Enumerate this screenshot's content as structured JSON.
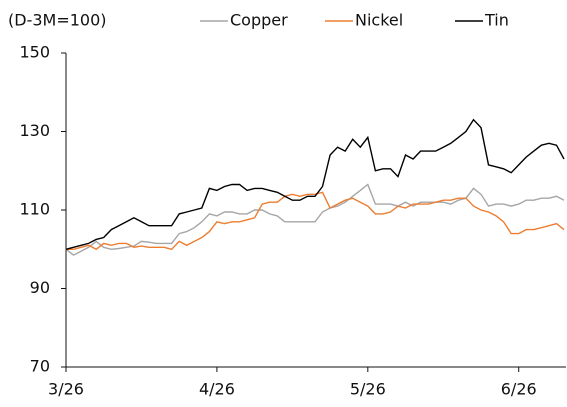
{
  "chart_data": {
    "type": "line",
    "y_label": "(D-3M=100)",
    "categories": [
      "3/26",
      null,
      null,
      null,
      null,
      null,
      null,
      null,
      null,
      null,
      null,
      null,
      null,
      null,
      null,
      null,
      null,
      null,
      null,
      null,
      "4/26",
      null,
      null,
      null,
      null,
      null,
      null,
      null,
      null,
      null,
      null,
      null,
      null,
      null,
      null,
      null,
      null,
      null,
      null,
      null,
      "5/26",
      null,
      null,
      null,
      null,
      null,
      null,
      null,
      null,
      null,
      null,
      null,
      null,
      null,
      null,
      null,
      null,
      null,
      null,
      null,
      "6/26",
      null,
      null,
      null,
      null,
      null,
      null
    ],
    "series": [
      {
        "name": "Copper",
        "color": "#a6a6a6",
        "values": [
          100,
          98.5,
          99.5,
          100.5,
          102,
          100.5,
          100,
          100.2,
          100.5,
          100.8,
          102,
          101.8,
          101.5,
          101.5,
          101.5,
          104,
          104.5,
          105.5,
          107,
          109,
          108.5,
          109.5,
          109.5,
          109,
          109,
          110,
          110,
          109,
          108.5,
          107,
          107,
          107,
          107,
          107,
          109.5,
          110.5,
          111,
          112,
          113.5,
          115,
          116.5,
          111.5,
          111.5,
          111.5,
          111,
          112,
          111,
          112,
          112,
          112,
          112,
          111.5,
          112.5,
          113,
          115.5,
          114,
          111,
          111.5,
          111.5,
          111,
          111.5,
          112.5,
          112.5,
          113,
          113,
          113.5,
          112.5
        ]
      },
      {
        "name": "Nickel",
        "color": "#ed7d31",
        "values": [
          100,
          100,
          100.5,
          101,
          100,
          101.5,
          101,
          101.5,
          101.5,
          100.5,
          100.8,
          100.5,
          100.5,
          100.5,
          100,
          102,
          101,
          102,
          103,
          104.5,
          107,
          106.5,
          107,
          107,
          107.5,
          108,
          111.5,
          112,
          112,
          113.5,
          114,
          113.5,
          114,
          114,
          114.5,
          110.5,
          111.5,
          112.5,
          113,
          112,
          111,
          109,
          109,
          109.5,
          111,
          110.5,
          111.5,
          111.5,
          111.5,
          112,
          112.5,
          112.5,
          113,
          113,
          111,
          110,
          109.5,
          108.5,
          107,
          104,
          104,
          105,
          105,
          105.5,
          106,
          106.5,
          105
        ]
      },
      {
        "name": "Tin",
        "color": "#000000",
        "values": [
          100,
          100.5,
          101,
          101.5,
          102.5,
          103,
          105,
          106,
          107,
          108,
          107,
          106,
          106,
          106,
          106,
          109,
          109.5,
          110,
          110.5,
          115.5,
          115,
          116,
          116.5,
          116.5,
          115,
          115.5,
          115.5,
          115,
          114.5,
          113.5,
          112.5,
          112.5,
          113.5,
          113.5,
          116,
          124,
          126,
          125,
          128,
          126,
          128.5,
          120,
          120.5,
          120.5,
          118.5,
          124,
          123,
          125,
          125,
          125,
          126,
          127,
          128.5,
          130,
          133,
          131,
          121.5,
          121,
          120.5,
          119.5,
          121.5,
          123.5,
          125,
          126.5,
          127,
          126.5,
          123
        ]
      }
    ],
    "ylim": [
      70,
      150
    ],
    "yticks": [
      70,
      90,
      110,
      130,
      150
    ]
  }
}
